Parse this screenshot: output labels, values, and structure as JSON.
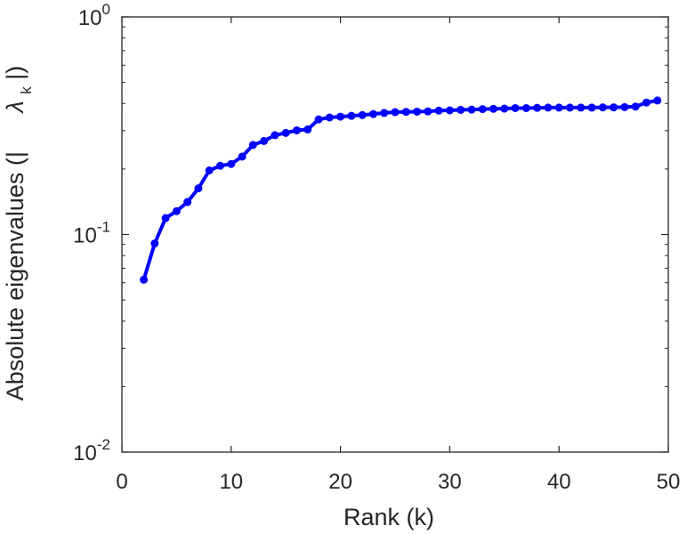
{
  "chart_data": {
    "type": "line",
    "xlabel": "Rank (k)",
    "ylabel": {
      "main": "Absolute eigenvalues (|",
      "symbol": "λ",
      "sub": "k",
      "close": "|)"
    },
    "xlim": [
      0,
      50
    ],
    "ylim": [
      0.01,
      1
    ],
    "yscale": "log",
    "xticks": [
      0,
      10,
      20,
      30,
      40,
      50
    ],
    "yticks": [
      {
        "value": 0.01,
        "base": "10",
        "exp": "-2"
      },
      {
        "value": 0.1,
        "base": "10",
        "exp": "-1"
      },
      {
        "value": 1,
        "base": "10",
        "exp": "0"
      }
    ],
    "grid": false,
    "series": [
      {
        "color": "#0000ff",
        "x": [
          2,
          3,
          4,
          5,
          6,
          7,
          8,
          9,
          10,
          11,
          12,
          13,
          14,
          15,
          16,
          17,
          18,
          19,
          20,
          21,
          22,
          23,
          24,
          25,
          26,
          27,
          28,
          29,
          30,
          31,
          32,
          33,
          34,
          35,
          36,
          37,
          38,
          39,
          40,
          41,
          42,
          43,
          44,
          45,
          46,
          47,
          48,
          49
        ],
        "y": [
          0.062,
          0.091,
          0.119,
          0.128,
          0.141,
          0.163,
          0.197,
          0.207,
          0.211,
          0.228,
          0.258,
          0.269,
          0.286,
          0.293,
          0.301,
          0.304,
          0.338,
          0.345,
          0.348,
          0.351,
          0.354,
          0.358,
          0.362,
          0.365,
          0.366,
          0.367,
          0.368,
          0.371,
          0.372,
          0.374,
          0.375,
          0.377,
          0.378,
          0.379,
          0.381,
          0.381,
          0.382,
          0.383,
          0.383,
          0.383,
          0.383,
          0.383,
          0.384,
          0.384,
          0.385,
          0.387,
          0.404,
          0.413
        ]
      }
    ]
  }
}
